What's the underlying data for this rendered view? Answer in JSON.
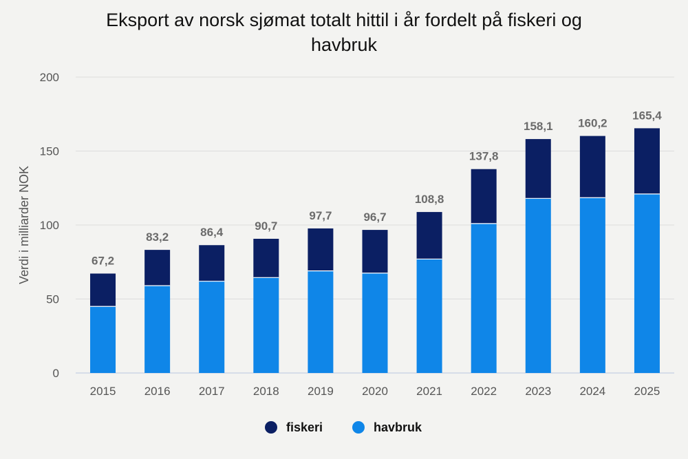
{
  "chart_data": {
    "type": "bar",
    "stacked": true,
    "title_lines": [
      "Eksport av norsk sjømat totalt hittil i år fordelt på fiskeri og",
      "havbruk"
    ],
    "xlabel": "",
    "ylabel": "Verdi i milliarder NOK",
    "ylim": [
      0,
      200
    ],
    "yticks": [
      "0",
      "50",
      "100",
      "150",
      "200"
    ],
    "grid": true,
    "legend_position": "bottom",
    "categories": [
      "2015",
      "2016",
      "2017",
      "2018",
      "2019",
      "2020",
      "2021",
      "2022",
      "2023",
      "2024",
      "2025"
    ],
    "series": [
      {
        "name": "havbruk",
        "color": "#0f86e8",
        "values": [
          45,
          59,
          62,
          64.5,
          69,
          67.5,
          77,
          101,
          118,
          118.5,
          121
        ]
      },
      {
        "name": "fiskeri",
        "color": "#0b1f63",
        "values": [
          22.2,
          24.2,
          24.4,
          26.2,
          28.7,
          29.2,
          31.8,
          36.8,
          40.1,
          41.7,
          44.4
        ]
      }
    ],
    "totals": [
      "67,2",
      "83,2",
      "86,4",
      "90,7",
      "97,7",
      "96,7",
      "108,8",
      "137,8",
      "158,1",
      "160,2",
      "165,4"
    ],
    "legend": [
      {
        "label": "fiskeri",
        "color": "#0b1f63"
      },
      {
        "label": "havbruk",
        "color": "#0f86e8"
      }
    ]
  }
}
